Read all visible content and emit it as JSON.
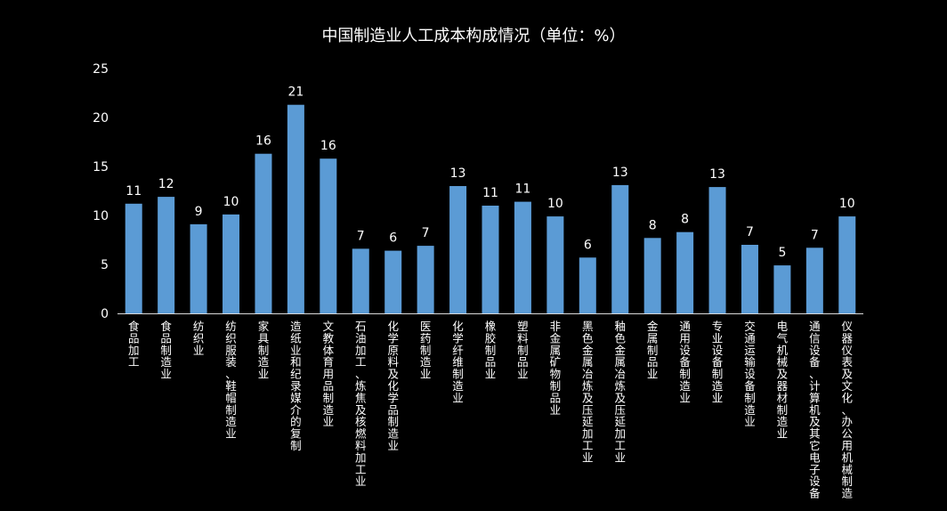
{
  "chart_data": {
    "type": "bar",
    "title": "中国制造业人工成本构成情况（单位：%）",
    "xlabel": "",
    "ylabel": "",
    "ylim": [
      0,
      25
    ],
    "yticks": [
      0,
      5,
      10,
      15,
      20,
      25
    ],
    "grid": false,
    "bar_color": "#5b9bd5",
    "background": "#000000",
    "categories": [
      "食品加工",
      "食品制造业",
      "纺织业",
      "纺织服装、鞋帽制造业",
      "家具制造业",
      "造纸业和纪录媒介的复制",
      "文教体育用品制造业",
      "石油加工、炼焦及核燃料加工业",
      "化学原料及化学品制造业",
      "医药制造业",
      "化学纤维制造业",
      "橡胶制品业",
      "塑料制品业",
      "非金属矿物制品业",
      "黑色金属冶炼及压延加工业",
      "釉色金属冶炼及压延加工业",
      "金属制品业",
      "通用设备制造业",
      "专业设备制造业",
      "交通运输设备制造业",
      "电气机械及器材制造业",
      "通信设备、计算机及其它电子设备",
      "仪器仪表及文化、办公用机械制造"
    ],
    "values": [
      11.2,
      11.9,
      9.1,
      10.1,
      16.3,
      21.3,
      15.8,
      6.6,
      6.4,
      6.9,
      13.0,
      11.0,
      11.4,
      9.9,
      5.7,
      13.1,
      7.7,
      8.3,
      12.9,
      7.0,
      4.9,
      6.7,
      9.9
    ],
    "data_labels": [
      "11",
      "12",
      "9",
      "10",
      "16",
      "21",
      "16",
      "7",
      "6",
      "7",
      "13",
      "11",
      "11",
      "10",
      "6",
      "13",
      "8",
      "8",
      "13",
      "7",
      "5",
      "7",
      "10"
    ]
  }
}
